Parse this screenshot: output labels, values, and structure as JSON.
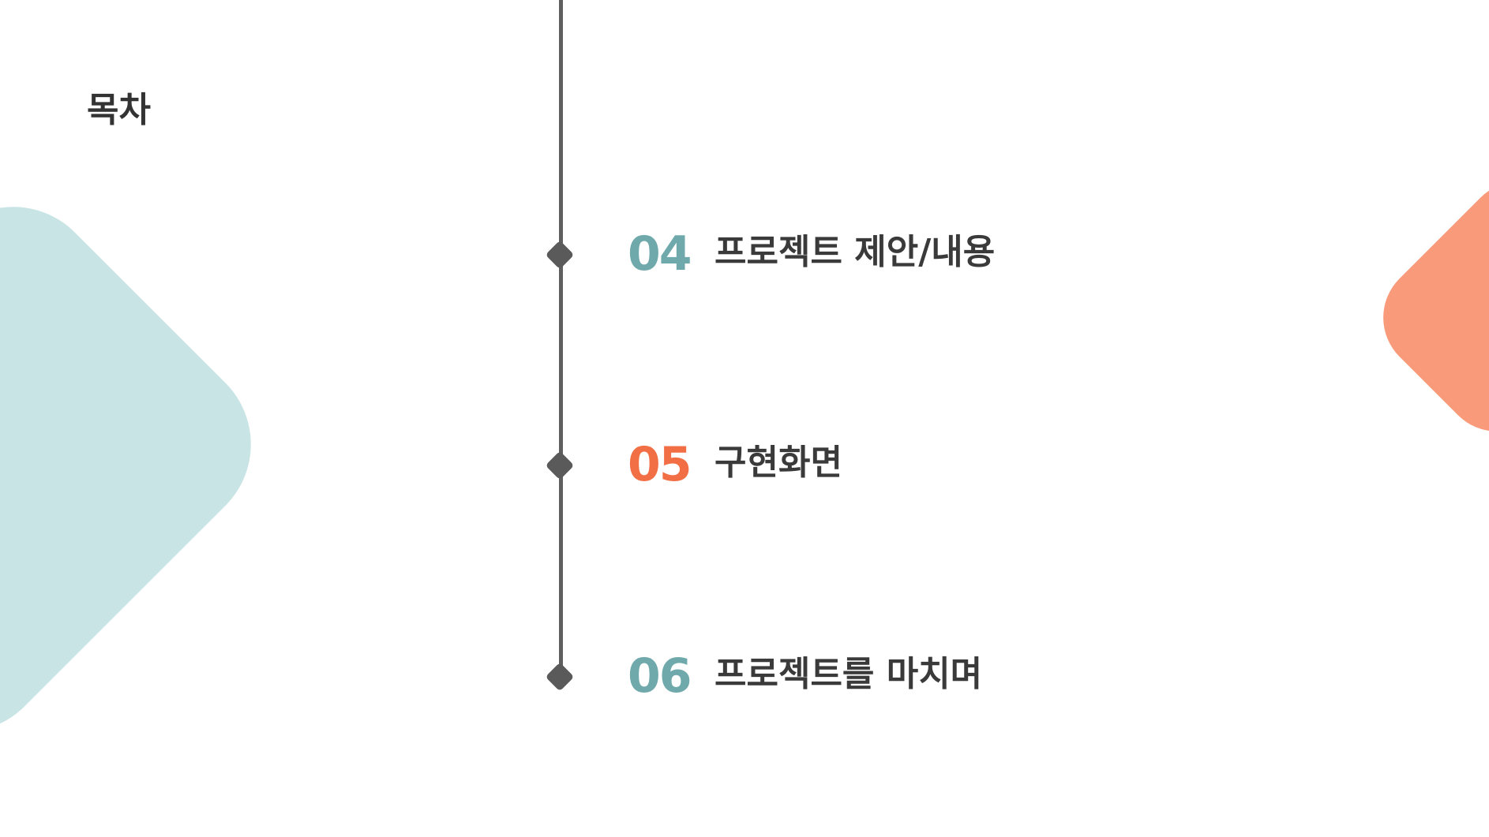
{
  "slide": {
    "title": "목차",
    "items": [
      {
        "number": "04",
        "label": "프로젝트 제안/내용",
        "number_color": "#6fa9ab"
      },
      {
        "number": "05",
        "label": "구현화면",
        "number_color": "#f26f45"
      },
      {
        "number": "06",
        "label": "프로젝트를 마치며",
        "number_color": "#6fa9ab"
      }
    ]
  },
  "colors": {
    "timeline": "#5f5f5f",
    "text": "#3a3a3a",
    "left_blob": "#c9e4e4",
    "right_blob": "#f99b7b",
    "background": "#ffffff"
  },
  "icons": [
    "diamond-marker-icon"
  ]
}
